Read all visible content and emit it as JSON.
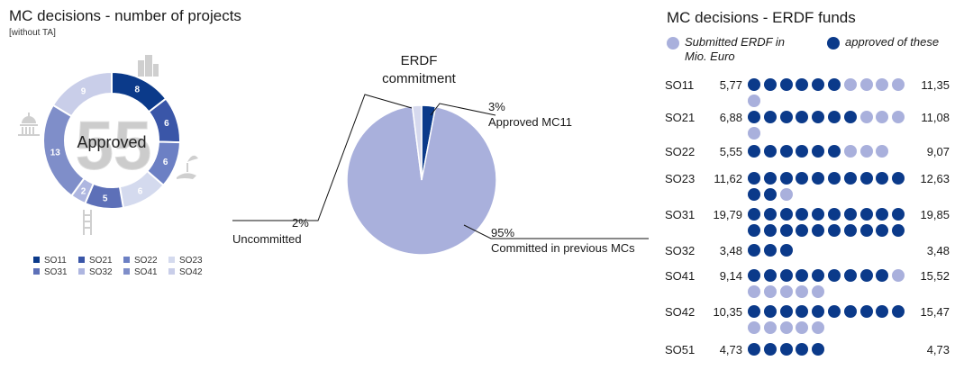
{
  "colors": {
    "dark_blue": "#0b3a8a",
    "light_blue": "#a9b0dc",
    "line": "#111111",
    "ring_colors": [
      "#0b3a8a",
      "#3a56a8",
      "#6c80c4",
      "#d4daee",
      "#5d70b8",
      "#aeb6e0",
      "#7f8ec9",
      "#c9cee9"
    ],
    "watermark": "#cccccc"
  },
  "projects": {
    "title": "MC decisions - number of projects",
    "note": "[without TA]",
    "center_number": "55",
    "center_label": "Approved",
    "icons": [
      "building-icon",
      "capitol-icon",
      "hand-plant-icon",
      "ladder-icon"
    ]
  },
  "pie": {
    "title_line1": "ERDF",
    "title_line2": "commitment",
    "labels": [
      {
        "pct": "3%",
        "text": "Approved MC11"
      },
      {
        "pct": "2%",
        "text": "Uncommitted"
      },
      {
        "pct": "95%",
        "text": "Committed in previous MCs"
      }
    ]
  },
  "funds": {
    "title": "MC decisions - ERDF funds",
    "legend_submitted_line1": "Submitted ERDF in",
    "legend_submitted_line2": "Mio. Euro",
    "legend_approved": "approved of these"
  },
  "chart_data": [
    {
      "type": "pie",
      "title": "MC decisions - number of projects",
      "subtitle": "[without TA]",
      "style": "donut",
      "center_text": "55 Approved",
      "categories": [
        "SO11",
        "SO21",
        "SO22",
        "SO23",
        "SO31",
        "SO32",
        "SO41",
        "SO42"
      ],
      "values": [
        8,
        6,
        6,
        6,
        5,
        2,
        13,
        9
      ],
      "legend_placement": "bottom"
    },
    {
      "type": "pie",
      "title": "ERDF commitment",
      "categories": [
        "Approved MC11",
        "Committed in previous MCs",
        "Uncommitted"
      ],
      "values": [
        3,
        95,
        2
      ],
      "unit": "%"
    },
    {
      "type": "table",
      "title": "MC decisions - ERDF funds",
      "series": [
        {
          "name": "approved of these"
        },
        {
          "name": "Submitted ERDF in Mio. Euro"
        }
      ],
      "rows": [
        {
          "label": "SO11",
          "approved": "5,77",
          "submitted": "11,35",
          "dark_dots": 6,
          "light_dots": 5
        },
        {
          "label": "SO21",
          "approved": "6,88",
          "submitted": "11,08",
          "dark_dots": 7,
          "light_dots": 4
        },
        {
          "label": "SO22",
          "approved": "5,55",
          "submitted": "9,07",
          "dark_dots": 6,
          "light_dots": 3
        },
        {
          "label": "SO23",
          "approved": "11,62",
          "submitted": "12,63",
          "dark_dots": 12,
          "light_dots": 1
        },
        {
          "label": "SO31",
          "approved": "19,79",
          "submitted": "19,85",
          "dark_dots": 20,
          "light_dots": 0
        },
        {
          "label": "SO32",
          "approved": "3,48",
          "submitted": "3,48",
          "dark_dots": 3,
          "light_dots": 0
        },
        {
          "label": "SO41",
          "approved": "9,14",
          "submitted": "15,52",
          "dark_dots": 9,
          "light_dots": 6
        },
        {
          "label": "SO42",
          "approved": "10,35",
          "submitted": "15,47",
          "dark_dots": 10,
          "light_dots": 5
        },
        {
          "label": "SO51",
          "approved": "4,73",
          "submitted": "4,73",
          "dark_dots": 5,
          "light_dots": 0
        }
      ]
    }
  ]
}
